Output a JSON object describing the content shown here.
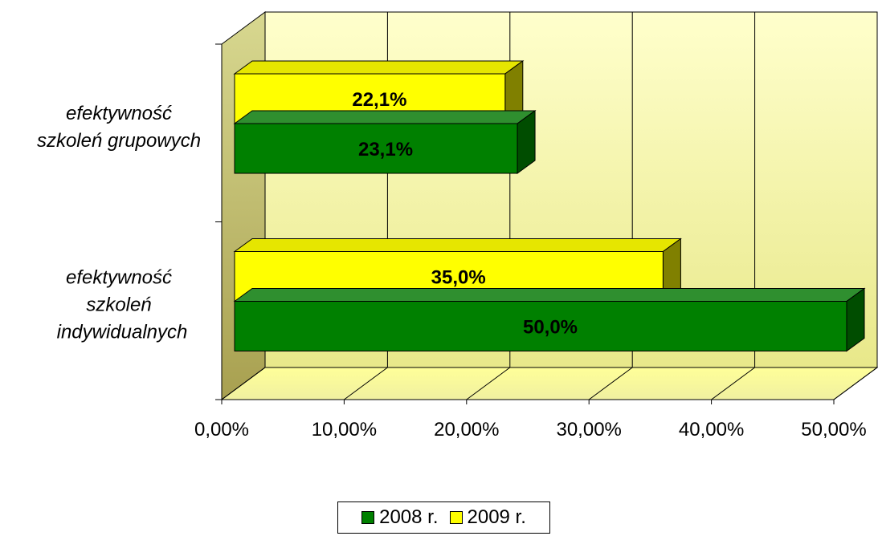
{
  "chart_data": {
    "type": "bar",
    "orientation": "horizontal",
    "categories": [
      "efektywność szkoleń grupowych",
      "efektywność szkoleń indywidualnych"
    ],
    "category_label_lines": [
      [
        "efektywność",
        "szkoleń grupowych"
      ],
      [
        "efektywność",
        "szkoleń",
        "indywidualnych"
      ]
    ],
    "series": [
      {
        "name": "2008 r.",
        "values": [
          23.1,
          50.0
        ],
        "labels": [
          "23,1%",
          "50,0%"
        ],
        "color": "#008000",
        "top_color": "#2f8f2f",
        "side_color": "#004d00"
      },
      {
        "name": "2009 r.",
        "values": [
          22.1,
          35.0
        ],
        "labels": [
          "22,1%",
          "35,0%"
        ],
        "color": "#ffff00",
        "top_color": "#e6e600",
        "side_color": "#808000"
      }
    ],
    "xlim": [
      0,
      50
    ],
    "x_ticks": [
      0,
      10,
      20,
      30,
      40,
      50
    ],
    "x_tick_labels": [
      "0,00%",
      "10,00%",
      "20,00%",
      "30,00%",
      "40,00%",
      "50,00%"
    ],
    "grid": true,
    "three_d": true,
    "legend_position": "bottom",
    "plot_background": "#ffff99"
  },
  "legend": {
    "items": [
      {
        "label": "2008 r.",
        "color": "#008000"
      },
      {
        "label": "2009 r.",
        "color": "#ffff00"
      }
    ]
  }
}
